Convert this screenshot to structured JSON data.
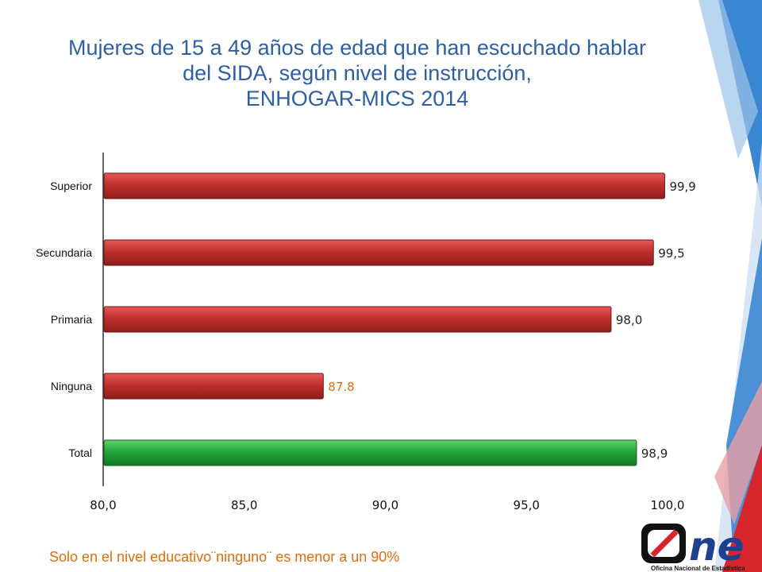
{
  "title": {
    "line1": "Mujeres de 15 a 49 años de edad que han escuchado hablar",
    "line2": "del SIDA, según nivel de instrucción,",
    "line3": "ENHOGAR-MICS 2014"
  },
  "chart_data": {
    "type": "bar",
    "orientation": "horizontal",
    "title": "Mujeres de 15 a 49 años de edad que han escuchado hablar del SIDA, según nivel de instrucción, ENHOGAR-MICS 2014",
    "categories": [
      "Superior",
      "Secundaria",
      "Primaria",
      "Ninguna",
      "Total"
    ],
    "values": [
      99.9,
      99.5,
      98.0,
      87.8,
      98.9
    ],
    "data_labels": [
      "99,9",
      "99,5",
      "98,0",
      "87.8",
      "98,9"
    ],
    "bar_colors": [
      "#c0302e",
      "#c0302e",
      "#c0302e",
      "#c0302e",
      "#22a63a"
    ],
    "label_colors": [
      "#222222",
      "#222222",
      "#222222",
      "#e36c0a",
      "#222222"
    ],
    "xlim": [
      80,
      100
    ],
    "x_ticks": [
      80,
      85,
      90,
      95,
      100
    ],
    "x_tick_labels": [
      "80,0",
      "85,0",
      "90,0",
      "95,0",
      "100,0"
    ],
    "xlabel": "",
    "ylabel": "",
    "grid": false,
    "legend": "none"
  },
  "footnote": "Solo en el nivel educativo¨ninguno¨ es menor a un 90%",
  "logo": {
    "text": "One",
    "tagline": "Oficina Nacional de Estadística",
    "colors": {
      "red": "#d6252b",
      "blue": "#1f3f8f",
      "dark": "#111111"
    }
  },
  "theme": {
    "title_color": "#2e5fa3",
    "accent_blue": "#2e7fd0",
    "accent_red": "#d6252b"
  }
}
